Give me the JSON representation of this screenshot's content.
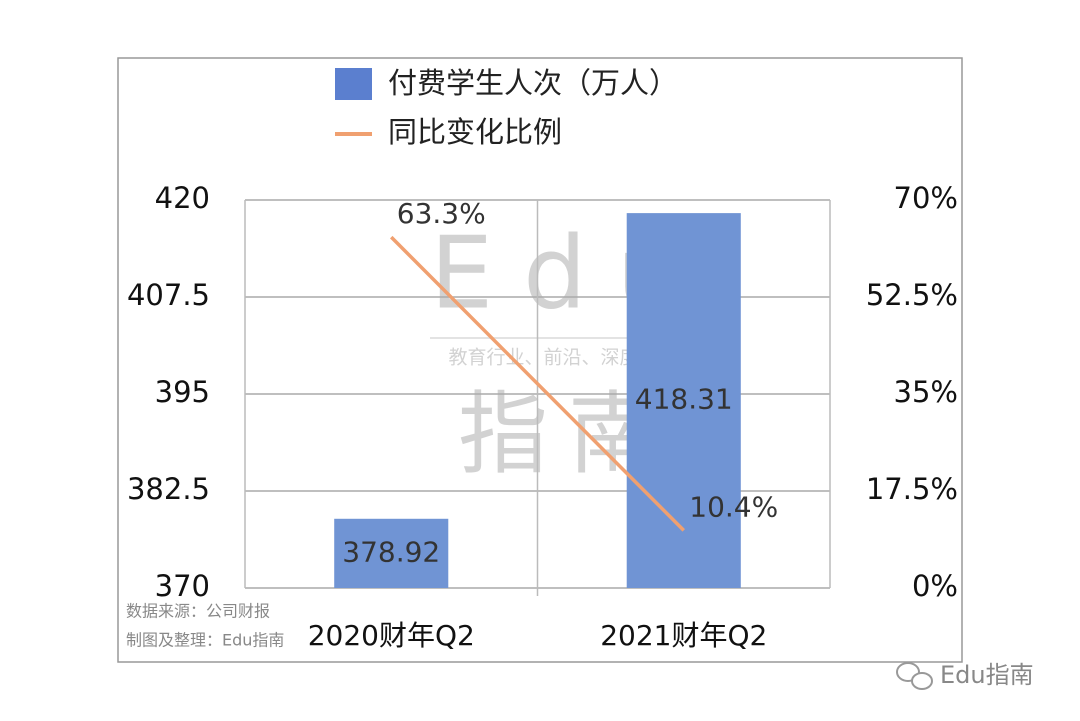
{
  "chart_data": {
    "type": "bar",
    "categories": [
      "2020财年Q2",
      "2021财年Q2"
    ],
    "series": [
      {
        "name": "付费学生人次（万人）",
        "color": "#7094d4",
        "values": [
          378.92,
          418.31
        ]
      },
      {
        "name": "同比变化比例",
        "type": "line",
        "axis": "y2",
        "color": "#f0a070",
        "values": [
          63.3,
          10.4
        ],
        "value_labels": [
          "63.3%",
          "10.4%"
        ]
      }
    ],
    "ylim": [
      370,
      420
    ],
    "yticks": [
      370,
      382.5,
      395,
      407.5,
      420
    ],
    "y2lim": [
      0,
      70
    ],
    "y2ticks": [
      {
        "value": 0,
        "label": "0%"
      },
      {
        "value": 17.5,
        "label": "17.5%"
      },
      {
        "value": 35,
        "label": "35%"
      },
      {
        "value": 52.5,
        "label": "52.5%"
      },
      {
        "value": 70,
        "label": "70%"
      }
    ],
    "grid": true,
    "notes": [
      "数据来源：公司财报",
      "制图及整理：Edu指南"
    ],
    "watermark": [
      "Edu",
      "教育行业、前沿、深度、独家",
      "指南"
    ],
    "footer": "Edu指南"
  }
}
